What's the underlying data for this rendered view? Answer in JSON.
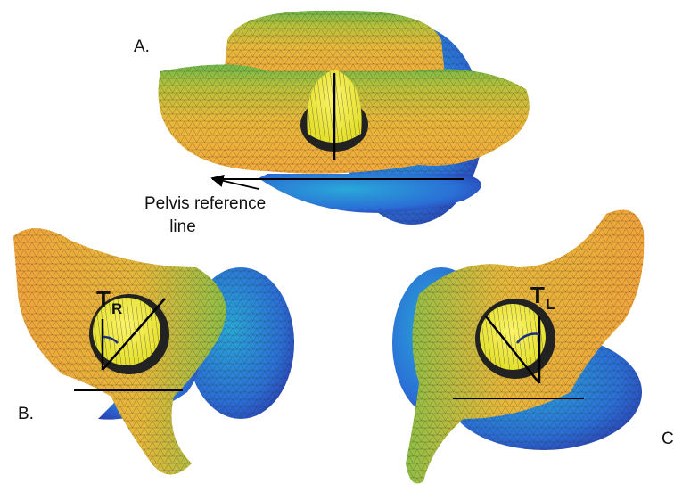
{
  "panels": [
    {
      "label": "A."
    },
    {
      "label": "B.",
      "angle_symbol": "T",
      "angle_subscript": "R"
    },
    {
      "label": "C",
      "angle_symbol": "T",
      "angle_subscript": "L"
    }
  ],
  "annotation": {
    "lines": [
      "Pelvis reference",
      "line"
    ]
  }
}
